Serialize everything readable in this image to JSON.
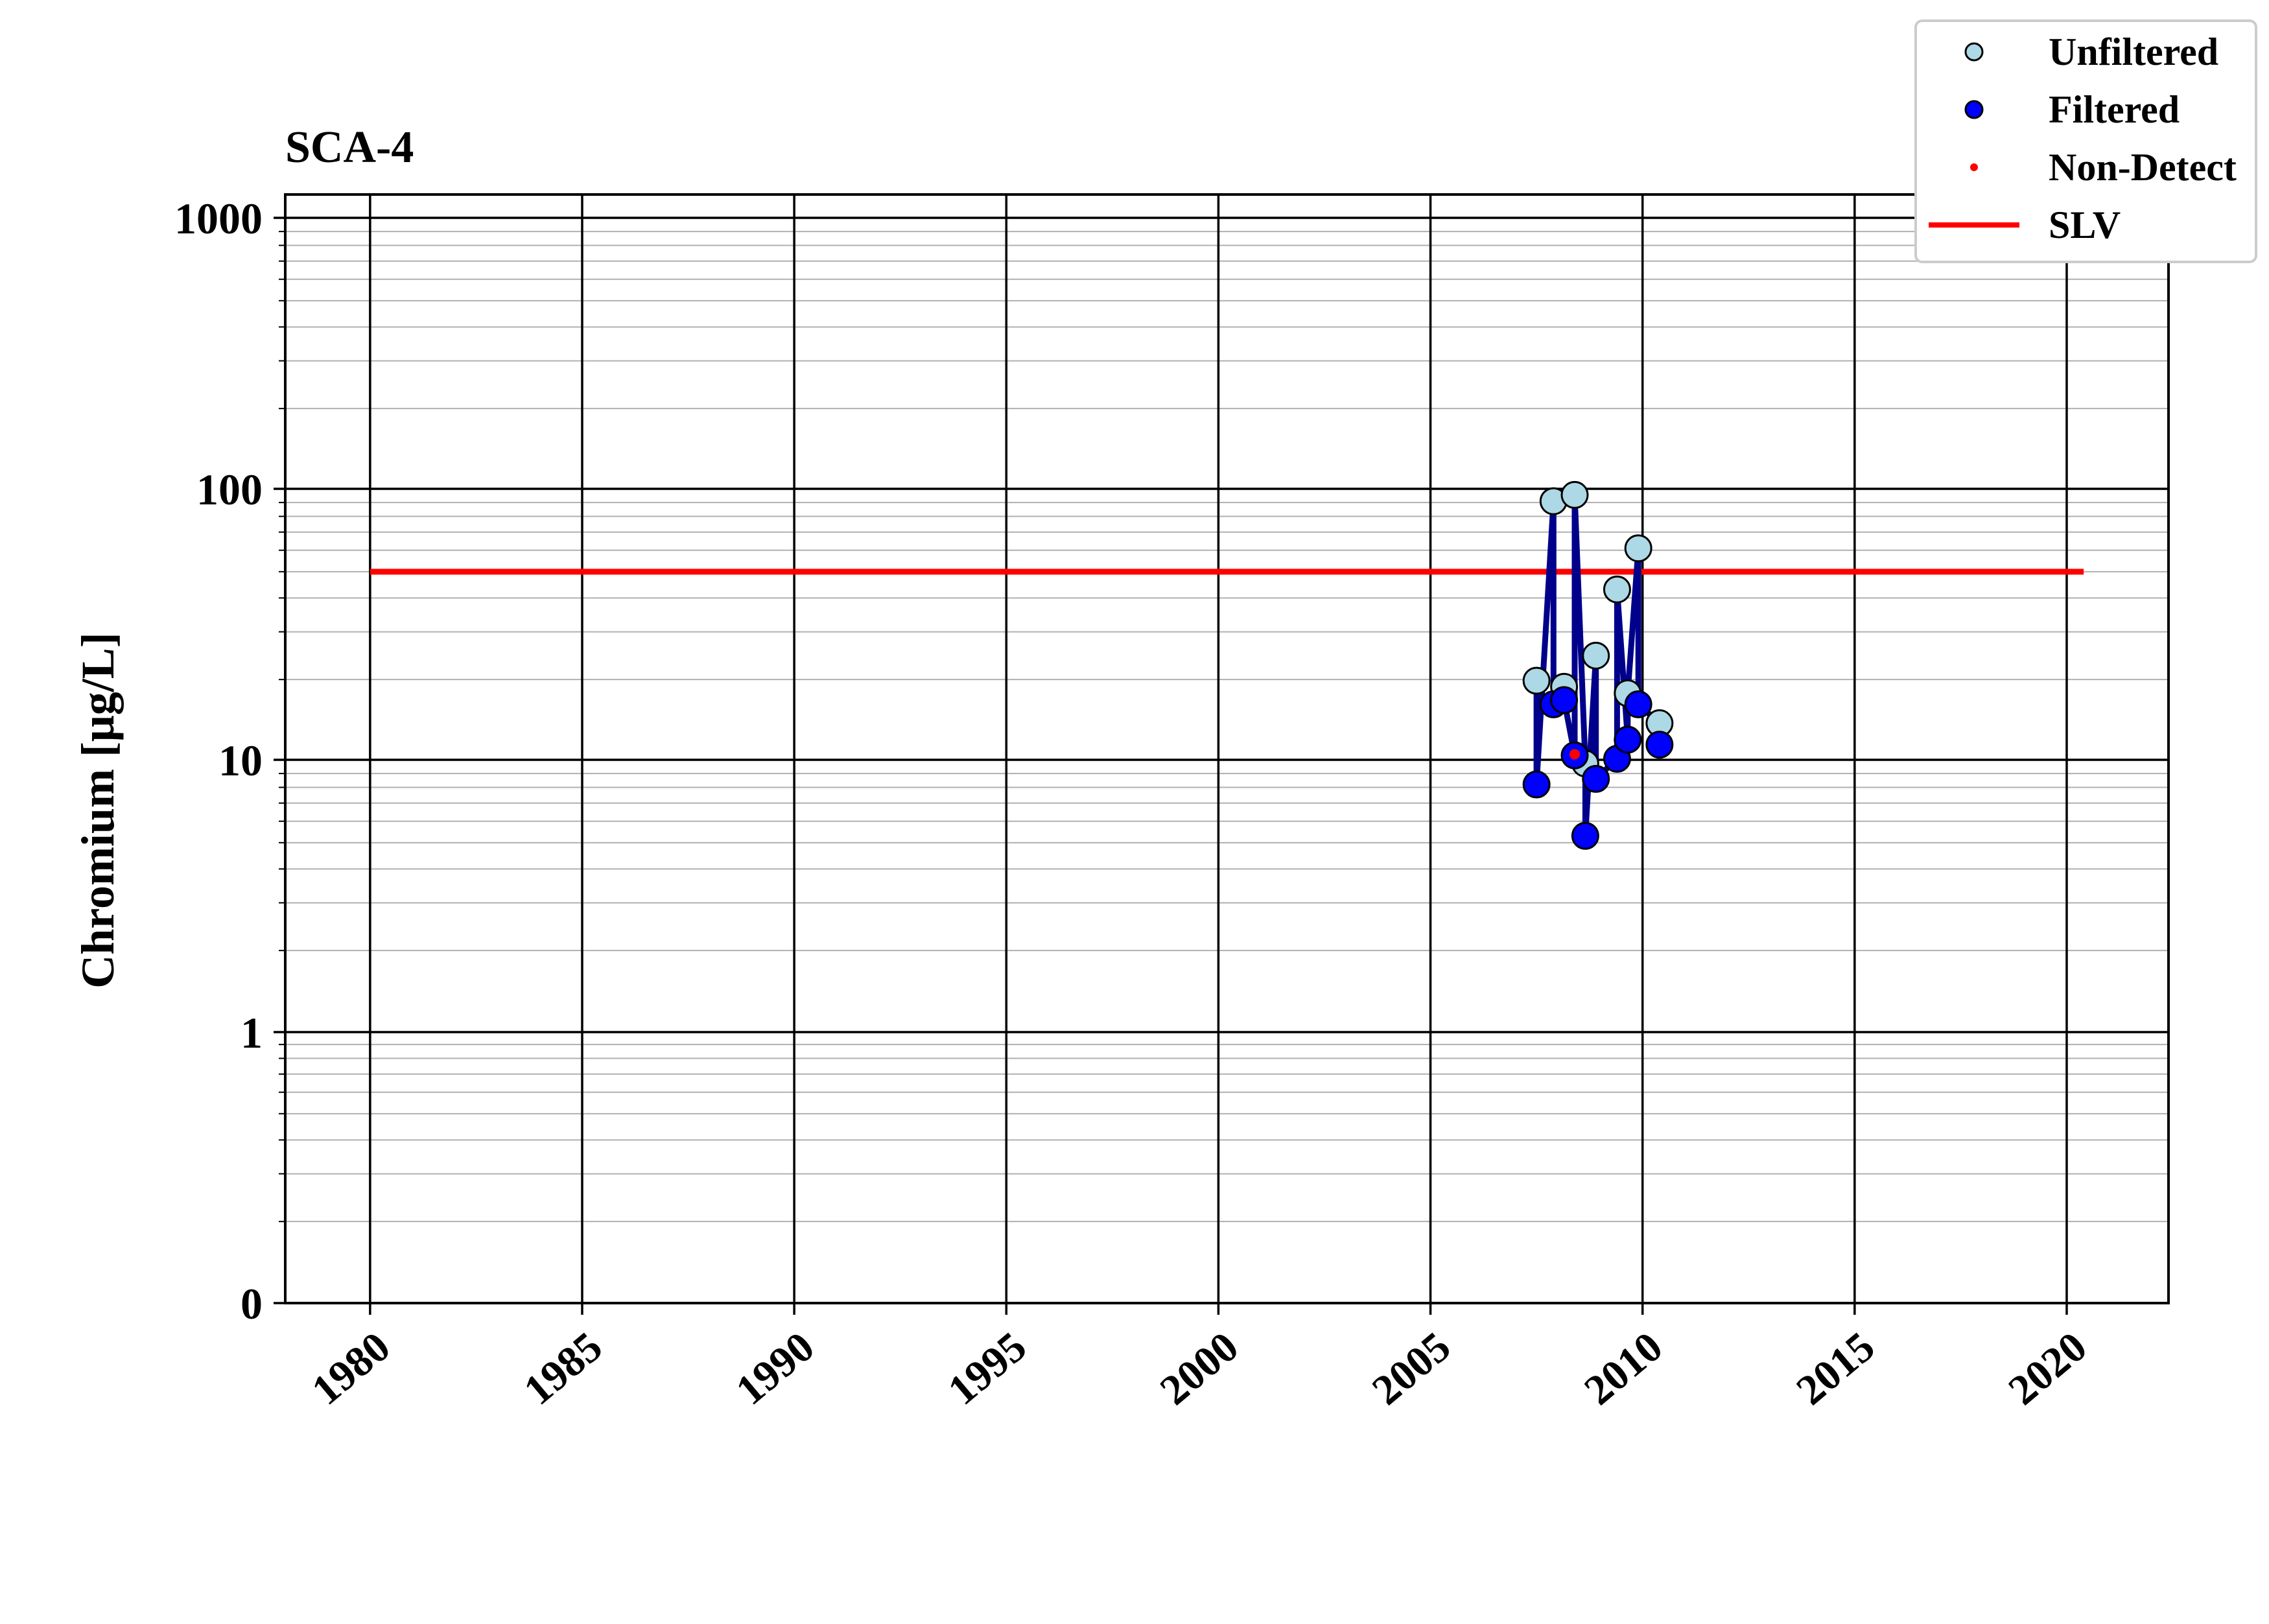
{
  "chart_data": {
    "type": "line",
    "title": "SCA-4",
    "xlabel": "",
    "ylabel": "Chromium [μg/L]",
    "y_scale": "log",
    "xlim": [
      1978.0,
      2022.4
    ],
    "x_ticks": [
      "1980",
      "1985",
      "1990",
      "1995",
      "2000",
      "2005",
      "2010",
      "2015",
      "2020"
    ],
    "y_ticks": [
      "0",
      "1",
      "10",
      "100",
      "1000"
    ],
    "grid": "major and minor",
    "legend": {
      "placement": "top-right",
      "entries": [
        {
          "label": "Unfiltered",
          "kind": "marker",
          "color": "#add8e6"
        },
        {
          "label": "Filtered",
          "kind": "marker",
          "color": "#0000ff"
        },
        {
          "label": "Non-Detect",
          "kind": "dot",
          "color": "#ff0000"
        },
        {
          "label": "SLV",
          "kind": "line",
          "color": "#ff0000"
        }
      ]
    },
    "slv": {
      "value": 50,
      "x_range": [
        1980.0,
        2020.4
      ],
      "color": "#ff0000"
    },
    "line_color": "#00008b",
    "series": [
      {
        "name": "Unfiltered",
        "color": "#add8e6",
        "points": [
          {
            "x": 2007.5,
            "y": 19.8
          },
          {
            "x": 2007.9,
            "y": 91
          },
          {
            "x": 2008.15,
            "y": 18.8
          },
          {
            "x": 2008.4,
            "y": 96
          },
          {
            "x": 2008.65,
            "y": 9.8
          },
          {
            "x": 2008.9,
            "y": 24.5
          },
          {
            "x": 2009.4,
            "y": 43
          },
          {
            "x": 2009.65,
            "y": 17.8
          },
          {
            "x": 2009.9,
            "y": 61
          },
          {
            "x": 2010.4,
            "y": 13.8
          }
        ]
      },
      {
        "name": "Filtered",
        "color": "#0000ff",
        "points": [
          {
            "x": 2007.5,
            "y": 8.2
          },
          {
            "x": 2007.9,
            "y": 16.2
          },
          {
            "x": 2008.15,
            "y": 16.8
          },
          {
            "x": 2008.4,
            "y": 10.5
          },
          {
            "x": 2008.65,
            "y": 5.3
          },
          {
            "x": 2008.9,
            "y": 8.6
          },
          {
            "x": 2009.4,
            "y": 10.2
          },
          {
            "x": 2009.65,
            "y": 12.0
          },
          {
            "x": 2009.9,
            "y": 16.2
          },
          {
            "x": 2010.4,
            "y": 11.5
          }
        ]
      },
      {
        "name": "Non-Detect",
        "color": "#ff0000",
        "points": [
          {
            "x": 2008.4,
            "y": 10.6
          }
        ]
      }
    ],
    "connecting_line": [
      {
        "x": 2007.5,
        "y": 19.8
      },
      {
        "x": 2007.5,
        "y": 8.2
      },
      {
        "x": 2007.9,
        "y": 91
      },
      {
        "x": 2007.9,
        "y": 16.2
      },
      {
        "x": 2008.15,
        "y": 18.8
      },
      {
        "x": 2008.15,
        "y": 16.8
      },
      {
        "x": 2008.4,
        "y": 10.5
      },
      {
        "x": 2008.4,
        "y": 96
      },
      {
        "x": 2008.65,
        "y": 9.8
      },
      {
        "x": 2008.65,
        "y": 5.3
      },
      {
        "x": 2008.9,
        "y": 24.5
      },
      {
        "x": 2008.9,
        "y": 8.6
      },
      {
        "x": 2009.4,
        "y": 10.2
      },
      {
        "x": 2009.4,
        "y": 43
      },
      {
        "x": 2009.65,
        "y": 12.0
      },
      {
        "x": 2009.65,
        "y": 17.8
      },
      {
        "x": 2009.9,
        "y": 61
      },
      {
        "x": 2009.9,
        "y": 16.2
      },
      {
        "x": 2010.4,
        "y": 13.8
      },
      {
        "x": 2010.4,
        "y": 11.5
      }
    ]
  }
}
